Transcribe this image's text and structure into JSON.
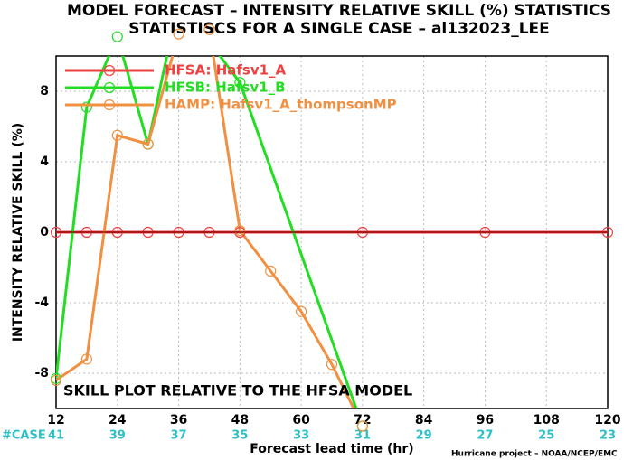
{
  "chart_data": {
    "type": "line",
    "title": "MODEL FORECAST – INTENSITY RELATIVE SKILL (%) STATISTICS",
    "subtitle": "STATISTISCS FOR A SINGLE CASE – al132023_LEE",
    "ylabel": "INTENSITY RELATIVE SKILL (%)",
    "xlabel": "Forecast lead time (hr)",
    "annotation": "SKILL PLOT RELATIVE TO THE HFSA MODEL",
    "footer": "Hurricane project – NOAA/NCEP/EMC",
    "case_label": "#CASE",
    "case_counts": [
      41,
      39,
      37,
      35,
      33,
      31,
      29,
      27,
      25,
      23
    ],
    "xlim": [
      12,
      120
    ],
    "xticks": [
      12,
      24,
      36,
      48,
      60,
      72,
      84,
      96,
      108,
      120
    ],
    "ylim": [
      -10,
      10
    ],
    "yticks": [
      -8,
      -4,
      0,
      4,
      8
    ],
    "grid": true,
    "series": [
      {
        "name": "HFSA: Hafsv1_A",
        "color": "#f04040",
        "x": [
          12,
          18,
          24,
          30,
          36,
          42,
          48,
          72,
          96,
          120
        ],
        "values": [
          0,
          0,
          0,
          0,
          0,
          0,
          0,
          0,
          0,
          0
        ]
      },
      {
        "name": "HFSB: Hafsv1_B",
        "color": "#22dd22",
        "x": [
          12,
          18,
          24,
          30,
          36,
          48,
          72
        ],
        "values": [
          -8.3,
          7.1,
          11.1,
          5.0,
          13.1,
          8.5,
          -11
        ]
      },
      {
        "name": "HAMP: Hafsv1_A_thompsonMP",
        "color": "#f09040",
        "x": [
          12,
          18,
          24,
          30,
          36,
          42,
          48,
          54,
          60,
          66,
          72
        ],
        "values": [
          -8.4,
          -7.2,
          5.5,
          5.0,
          11.25,
          11.5,
          0.1,
          -2.2,
          -4.5,
          -7.5,
          -11
        ]
      }
    ]
  }
}
